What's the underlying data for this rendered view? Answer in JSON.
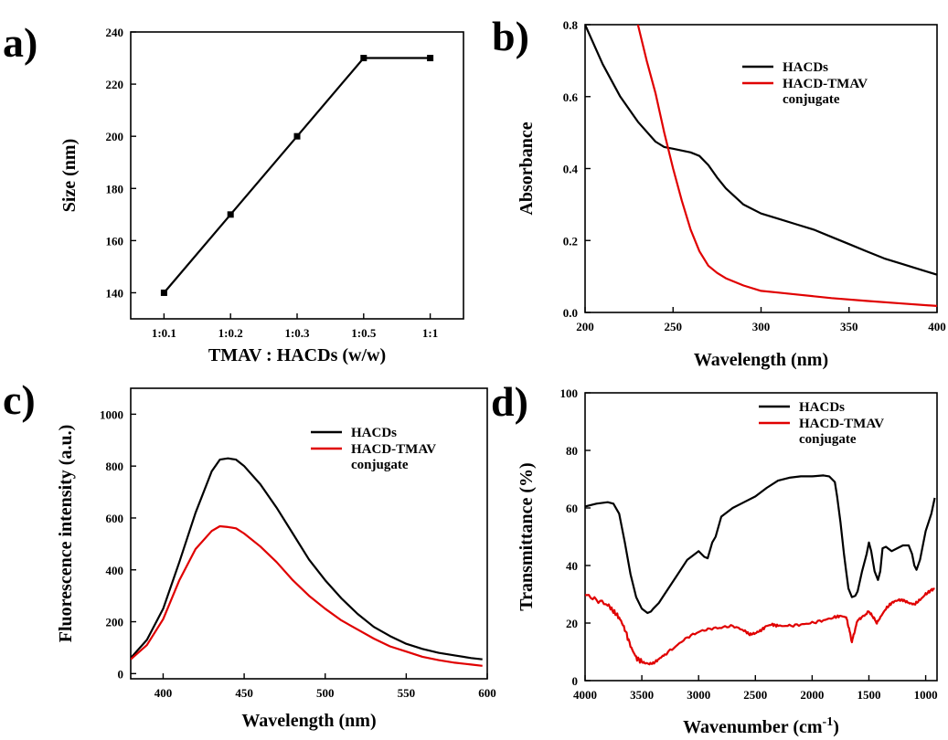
{
  "chart_data": [
    {
      "panel": "a)",
      "type": "line",
      "title": "",
      "xlabel": "TMAV : HACDs  (w/w)",
      "ylabel": "Size (nm)",
      "categories": [
        "1:0.1",
        "1:0.2",
        "1:0.3",
        "1:0.5",
        "1:1"
      ],
      "series": [
        {
          "name": "",
          "color": "#000000",
          "markers": true,
          "values": [
            140,
            170,
            200,
            230,
            230
          ]
        }
      ],
      "ylim": [
        130,
        240
      ],
      "yticks": [
        140,
        160,
        180,
        200,
        220,
        240
      ],
      "legend": null
    },
    {
      "panel": "b)",
      "type": "line",
      "title": "",
      "xlabel": "Wavelength (nm)",
      "ylabel": "Absorbance",
      "xlim": [
        200,
        400
      ],
      "ylim": [
        0,
        0.8
      ],
      "xticks": [
        200,
        250,
        300,
        350,
        400
      ],
      "yticks": [
        0.0,
        0.2,
        0.4,
        0.6,
        0.8
      ],
      "ytick_labels": [
        "0.0",
        "0.2",
        "0.4",
        "0.6",
        "0.8"
      ],
      "legend": "top-right",
      "series": [
        {
          "name": "HACDs",
          "color": "#000000",
          "x": [
            200,
            210,
            220,
            230,
            240,
            245,
            250,
            255,
            260,
            265,
            270,
            275,
            280,
            290,
            300,
            310,
            320,
            330,
            340,
            350,
            360,
            370,
            380,
            390,
            400
          ],
          "y": [
            0.8,
            0.69,
            0.6,
            0.53,
            0.475,
            0.46,
            0.455,
            0.45,
            0.445,
            0.435,
            0.41,
            0.375,
            0.345,
            0.3,
            0.275,
            0.26,
            0.245,
            0.23,
            0.21,
            0.19,
            0.17,
            0.15,
            0.135,
            0.12,
            0.105
          ]
        },
        {
          "name": "HACD-TMAV\nconjugate",
          "color": "#e00000",
          "x": [
            230,
            235,
            240,
            245,
            250,
            255,
            260,
            265,
            270,
            275,
            280,
            290,
            300,
            310,
            320,
            340,
            360,
            380,
            400
          ],
          "y": [
            0.8,
            0.7,
            0.61,
            0.5,
            0.4,
            0.31,
            0.23,
            0.17,
            0.13,
            0.11,
            0.095,
            0.075,
            0.06,
            0.055,
            0.05,
            0.04,
            0.032,
            0.025,
            0.018
          ]
        }
      ]
    },
    {
      "panel": "c)",
      "type": "line",
      "title": "",
      "xlabel": "Wavelength (nm)",
      "ylabel": "Fluorescence intensity (a.u.)",
      "xlim": [
        380,
        600
      ],
      "ylim": [
        -20,
        1100
      ],
      "xticks": [
        400,
        450,
        500,
        550,
        600
      ],
      "yticks": [
        0,
        200,
        400,
        600,
        800,
        1000
      ],
      "legend": "top-right",
      "series": [
        {
          "name": "HACDs",
          "color": "#000000",
          "x": [
            380,
            390,
            400,
            410,
            420,
            430,
            435,
            440,
            445,
            450,
            460,
            470,
            480,
            490,
            500,
            510,
            520,
            530,
            540,
            550,
            560,
            570,
            580,
            590,
            597
          ],
          "y": [
            60,
            130,
            250,
            430,
            620,
            780,
            825,
            830,
            825,
            800,
            730,
            640,
            540,
            440,
            360,
            290,
            230,
            180,
            145,
            115,
            95,
            80,
            70,
            60,
            55
          ]
        },
        {
          "name": "HACD-TMAV\nconjugate",
          "color": "#e00000",
          "x": [
            380,
            390,
            400,
            410,
            420,
            430,
            435,
            440,
            445,
            450,
            460,
            470,
            480,
            490,
            500,
            510,
            520,
            530,
            540,
            550,
            560,
            570,
            580,
            590,
            597
          ],
          "y": [
            55,
            110,
            210,
            360,
            480,
            550,
            568,
            565,
            560,
            540,
            490,
            430,
            360,
            300,
            250,
            205,
            170,
            135,
            105,
            85,
            65,
            52,
            42,
            35,
            30
          ]
        }
      ]
    },
    {
      "panel": "d)",
      "type": "line",
      "title": "",
      "xlabel": "Wavenumber (cm",
      "xlabel_sup": "-1",
      "xlabel_tail": ")",
      "ylabel": "Transmittance (%)",
      "xlim": [
        4000,
        900
      ],
      "ylim": [
        0,
        100
      ],
      "xticks": [
        4000,
        3500,
        3000,
        2500,
        2000,
        1500,
        1000
      ],
      "yticks": [
        0,
        20,
        40,
        60,
        80,
        100
      ],
      "legend": "top-right",
      "series": [
        {
          "name": "HACDs",
          "color": "#000000",
          "x": [
            4000,
            3900,
            3800,
            3750,
            3700,
            3650,
            3600,
            3550,
            3500,
            3450,
            3420,
            3400,
            3350,
            3300,
            3200,
            3100,
            3000,
            2950,
            2920,
            2880,
            2850,
            2800,
            2700,
            2600,
            2500,
            2400,
            2300,
            2200,
            2100,
            2000,
            1900,
            1850,
            1800,
            1780,
            1750,
            1720,
            1700,
            1680,
            1650,
            1620,
            1600,
            1560,
            1520,
            1500,
            1480,
            1450,
            1420,
            1400,
            1380,
            1350,
            1300,
            1250,
            1200,
            1150,
            1120,
            1100,
            1080,
            1050,
            1000,
            950,
            920
          ],
          "y": [
            60.5,
            61.5,
            62,
            61.5,
            58,
            48,
            37,
            29,
            25,
            23.5,
            24,
            25,
            27,
            30,
            36,
            42,
            45,
            43,
            42.5,
            48,
            50,
            57,
            60,
            62,
            64,
            67,
            69.5,
            70.5,
            71,
            71,
            71.3,
            71,
            69,
            64,
            55,
            44,
            38,
            32,
            29,
            29.5,
            31,
            38,
            44,
            48,
            45,
            38,
            35,
            38,
            46,
            46.5,
            45,
            46,
            47,
            47,
            44,
            40,
            38.5,
            42,
            52,
            58,
            63.5
          ]
        },
        {
          "name": "HACD-TMAV\nconjugate",
          "color": "#e00000",
          "noisy": true,
          "x": [
            4000,
            3900,
            3800,
            3750,
            3700,
            3650,
            3600,
            3550,
            3500,
            3450,
            3400,
            3350,
            3300,
            3200,
            3100,
            3000,
            2900,
            2800,
            2700,
            2600,
            2550,
            2500,
            2450,
            2400,
            2350,
            2300,
            2200,
            2100,
            2000,
            1900,
            1800,
            1750,
            1700,
            1680,
            1650,
            1620,
            1600,
            1560,
            1500,
            1460,
            1430,
            1400,
            1350,
            1300,
            1250,
            1200,
            1150,
            1100,
            1050,
            1000,
            950,
            920
          ],
          "y": [
            30,
            28,
            26.5,
            24,
            22,
            18,
            12,
            8,
            6.5,
            5.8,
            6,
            7.5,
            9,
            12,
            15,
            17,
            18,
            18.5,
            19,
            17.5,
            16,
            16.5,
            17.5,
            19,
            19.5,
            19,
            19,
            19.5,
            20,
            21,
            22,
            22.5,
            22,
            19,
            13.5,
            18,
            21,
            22,
            24,
            22,
            20,
            22,
            25,
            27,
            28,
            28,
            27,
            26.5,
            28,
            30,
            31.5,
            32
          ]
        }
      ]
    }
  ]
}
